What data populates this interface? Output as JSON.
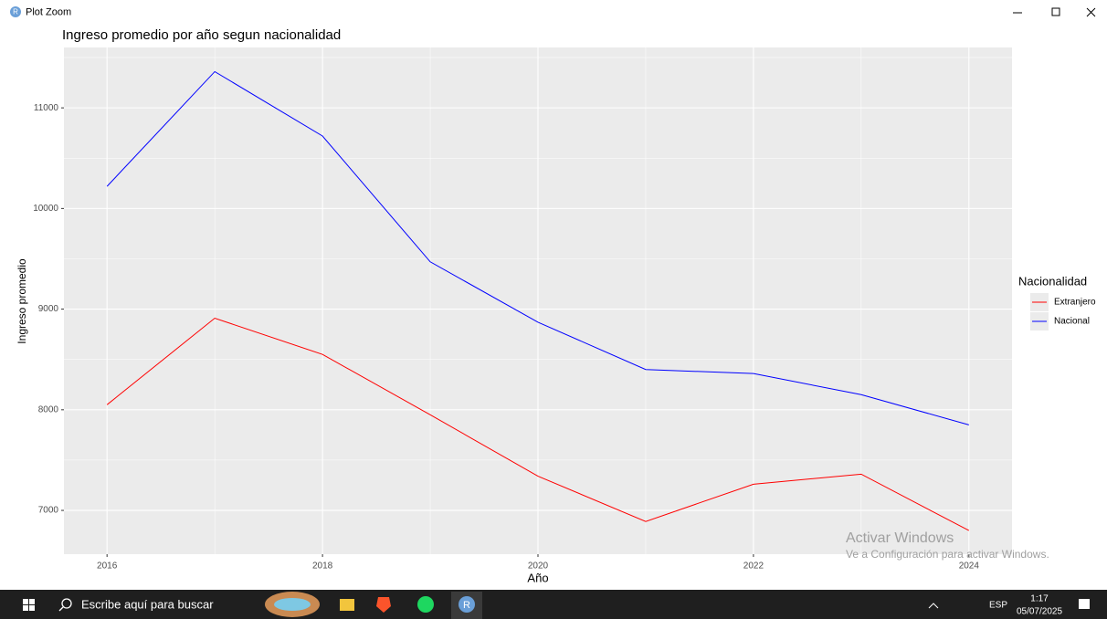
{
  "window": {
    "title": "Plot Zoom",
    "icon_label": "R"
  },
  "chart_data": {
    "type": "line",
    "title": "Ingreso promedio por año segun nacionalidad",
    "x_label": "Año",
    "y_label": "Ingreso promedio",
    "x": [
      2016,
      2017,
      2018,
      2019,
      2020,
      2021,
      2022,
      2023,
      2024
    ],
    "series": [
      {
        "name": "Extranjero",
        "color": "#ff0000",
        "values": [
          8050,
          8910,
          8550,
          7950,
          7340,
          6890,
          7260,
          7360,
          6800
        ]
      },
      {
        "name": "Nacional",
        "color": "#0000ff",
        "values": [
          10220,
          11360,
          10720,
          9470,
          8870,
          8400,
          8360,
          8150,
          7850
        ]
      }
    ],
    "xlim": [
      2015.6,
      2024.4
    ],
    "xticks": [
      2016,
      2018,
      2020,
      2022,
      2024
    ],
    "ylim": [
      6565,
      11600
    ],
    "yticks": [
      7000,
      8000,
      9000,
      10000,
      11000
    ],
    "grid": true,
    "legend_title": "Nacionalidad",
    "legend_position": "right"
  },
  "watermark": {
    "title": "Activar Windows",
    "subtitle": "Ve a Configuración para activar Windows."
  },
  "taskbar": {
    "search": "Escribe aquí para buscar",
    "language": "ESP",
    "time": "1:17",
    "date": "05/07/2025"
  }
}
